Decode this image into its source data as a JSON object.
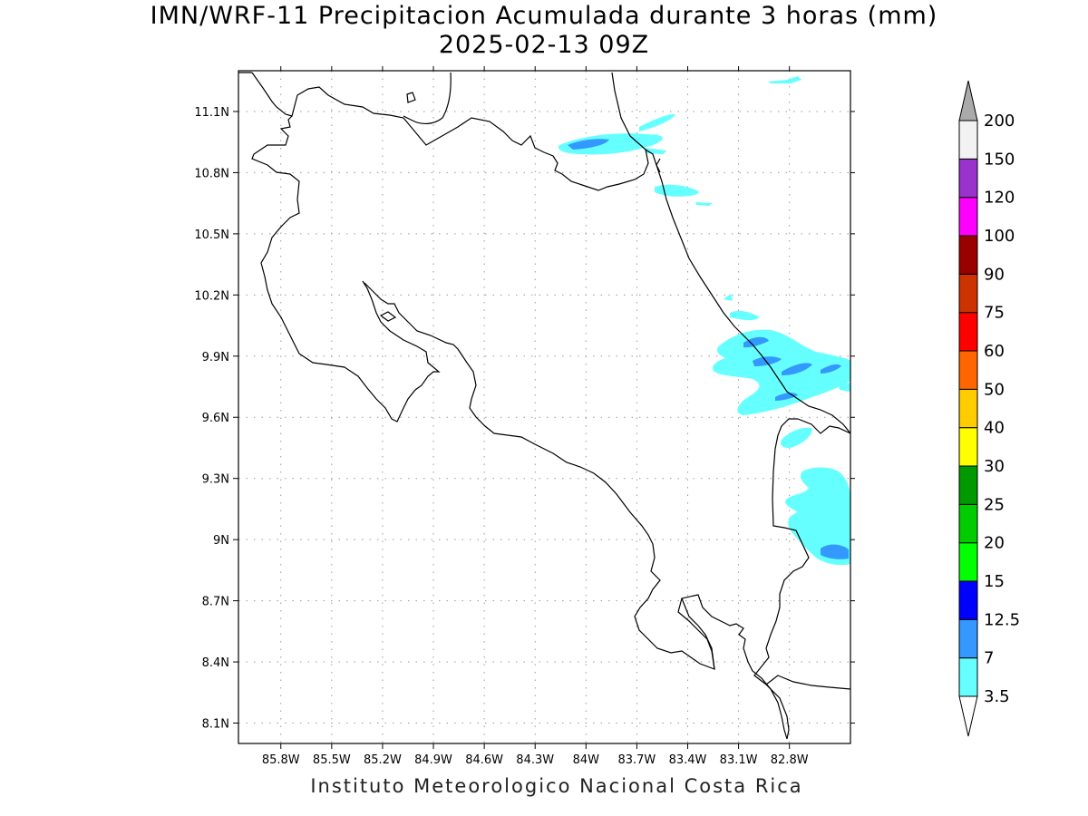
{
  "title": {
    "line1": "IMN/WRF-11 Precipitacion Acumulada durante 3 horas (mm)",
    "line2": "2025-02-13 09Z"
  },
  "credit": "Instituto Meteorologico Nacional Costa Rica",
  "map": {
    "lon_range": [
      -86.05,
      -82.44
    ],
    "lat_range": [
      8.0,
      11.3
    ],
    "lon_ticks": [
      {
        "value": -85.8,
        "label": "85.8W"
      },
      {
        "value": -85.5,
        "label": "85.5W"
      },
      {
        "value": -85.2,
        "label": "85.2W"
      },
      {
        "value": -84.9,
        "label": "84.9W"
      },
      {
        "value": -84.6,
        "label": "84.6W"
      },
      {
        "value": -84.3,
        "label": "84.3W"
      },
      {
        "value": -84.0,
        "label": "84W"
      },
      {
        "value": -83.7,
        "label": "83.7W"
      },
      {
        "value": -83.4,
        "label": "83.4W"
      },
      {
        "value": -83.1,
        "label": "83.1W"
      },
      {
        "value": -82.8,
        "label": "82.8W"
      }
    ],
    "lat_ticks": [
      {
        "value": 11.1,
        "label": "11.1N"
      },
      {
        "value": 10.8,
        "label": "10.8N"
      },
      {
        "value": 10.5,
        "label": "10.5N"
      },
      {
        "value": 10.2,
        "label": "10.2N"
      },
      {
        "value": 9.9,
        "label": "9.9N"
      },
      {
        "value": 9.6,
        "label": "9.6N"
      },
      {
        "value": 9.3,
        "label": "9.3N"
      },
      {
        "value": 9.0,
        "label": "9N"
      },
      {
        "value": 8.7,
        "label": "8.7N"
      },
      {
        "value": 8.4,
        "label": "8.4N"
      },
      {
        "value": 8.1,
        "label": "8.1N"
      }
    ],
    "grid": "dotted",
    "coast_color": "#000000"
  },
  "colorbar": {
    "levels": [
      "3.5",
      "7",
      "12.5",
      "15",
      "20",
      "25",
      "30",
      "40",
      "50",
      "60",
      "75",
      "90",
      "100",
      "120",
      "150",
      "200"
    ],
    "colors": [
      "#66ffff",
      "#3399ff",
      "#0000ff",
      "#00ff00",
      "#00cc00",
      "#009900",
      "#ffff00",
      "#ffcc00",
      "#ff6600",
      "#ff0000",
      "#cc3300",
      "#990000",
      "#ff00ff",
      "#9933cc",
      "#f2f2f2"
    ],
    "over_color": "#aaaaaa",
    "under_color": "#ffffff"
  },
  "precip_colors": {
    "light": "#66ffff",
    "moderate": "#3399ff"
  }
}
